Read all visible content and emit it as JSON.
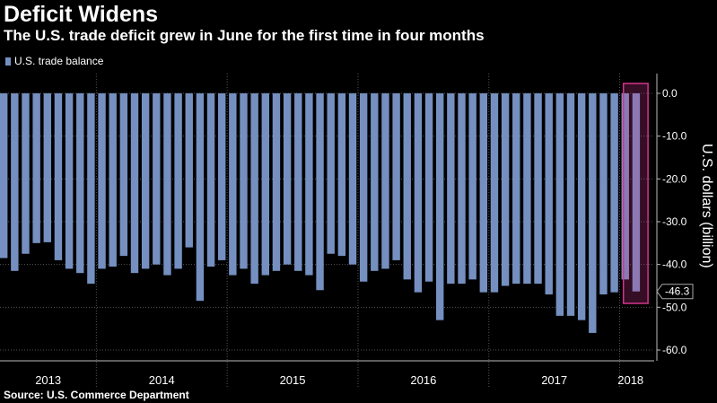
{
  "title": "Deficit Widens",
  "subtitle": "The U.S. trade deficit grew in June for the first time in four months",
  "source": "Source: U.S. Commerce Department",
  "colors": {
    "bar": "#7590c0",
    "highlight": "#d4358e",
    "background": "#000000",
    "grid": "#555555"
  },
  "chart_data": {
    "type": "bar",
    "title": "Deficit Widens",
    "ylabel": "U.S. dollars (billion)",
    "xlabel": "",
    "ylim": [
      -62,
      5
    ],
    "yticks": [
      0,
      -10,
      -20,
      -30,
      -40,
      -50,
      -60
    ],
    "ytick_labels": [
      "0.0",
      "-10.0",
      "-20.0",
      "-30.0",
      "-40.0",
      "-50.0",
      "-60.0"
    ],
    "legend": "U.S. trade balance",
    "year_labels": [
      "2013",
      "2014",
      "2015",
      "2016",
      "2017",
      "2018"
    ],
    "year_start_index": [
      0,
      9,
      21,
      33,
      45,
      57
    ],
    "series": [
      {
        "name": "U.S. trade balance",
        "values": [
          -38.5,
          -41.5,
          -37.5,
          -35.0,
          -34.8,
          -39.0,
          -41.0,
          -42.0,
          -44.5,
          -41.0,
          -40.5,
          -38.0,
          -42.0,
          -41.0,
          -40.0,
          -42.5,
          -41.0,
          -36.0,
          -48.5,
          -40.5,
          -39.0,
          -42.5,
          -41.0,
          -44.5,
          -42.5,
          -41.5,
          -40.0,
          -41.5,
          -42.5,
          -46.0,
          -37.5,
          -38.0,
          -40.0,
          -44.0,
          -41.5,
          -41.0,
          -39.0,
          -43.5,
          -46.5,
          -44.0,
          -53.0,
          -44.5,
          -44.5,
          -43.5,
          -46.5,
          -46.5,
          -45.0,
          -44.5,
          -44.5,
          -44.5,
          -47.0,
          -52.0,
          -52.0,
          -53.0,
          -56.0,
          -47.0,
          -46.5,
          -43.5,
          -46.3
        ]
      }
    ],
    "highlight": {
      "index": 58,
      "label": "-46.3",
      "value": -46.3
    }
  }
}
